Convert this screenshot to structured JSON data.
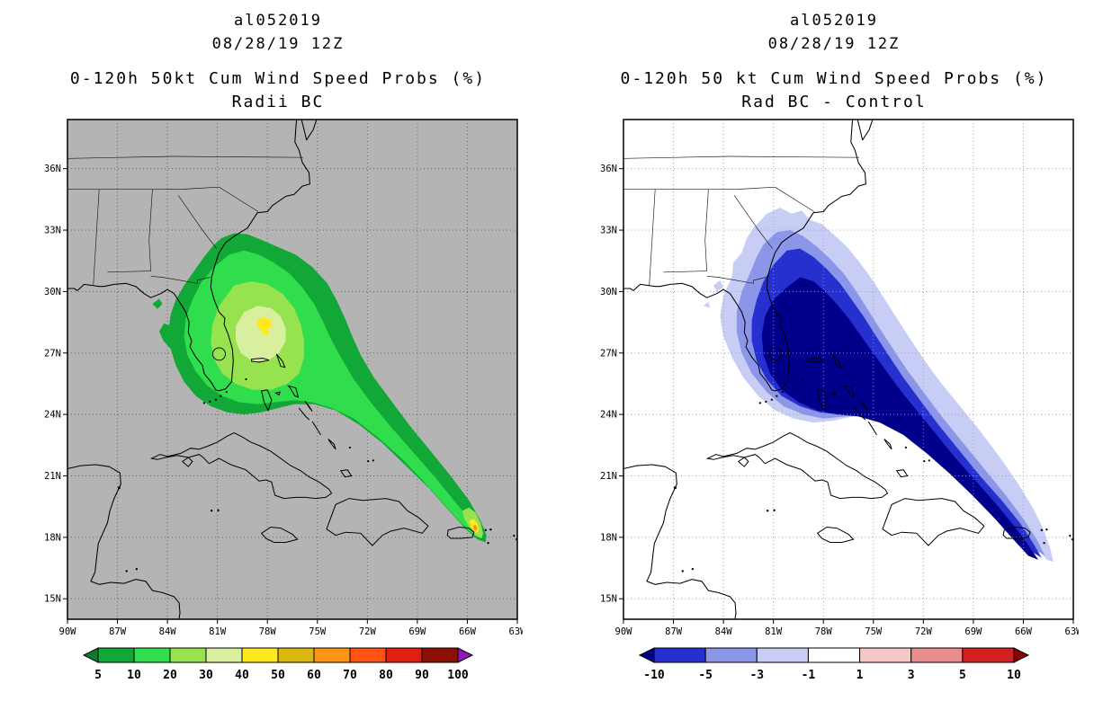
{
  "left": {
    "storm_id": "al052019",
    "init_time": "08/28/19 12Z",
    "product": "0-120h 50kt Cum Wind Speed Probs (%)",
    "variant": "Radii BC",
    "map_bg": "#b4b4b4",
    "lat_ticks": [
      "36N",
      "33N",
      "30N",
      "27N",
      "24N",
      "21N",
      "18N",
      "15N"
    ],
    "lon_ticks": [
      "90W",
      "87W",
      "84W",
      "81W",
      "78W",
      "75W",
      "72W",
      "69W",
      "66W",
      "63W"
    ],
    "colorbar": {
      "labels": [
        "5",
        "10",
        "20",
        "30",
        "40",
        "50",
        "60",
        "70",
        "80",
        "90",
        "100"
      ],
      "colors": [
        "#0a7d2c",
        "#12a837",
        "#2fdd4d",
        "#97e34f",
        "#d8efa0",
        "#ffe81e",
        "#dbb60f",
        "#ff9415",
        "#ff5213",
        "#e01f10",
        "#8c1004",
        "#8d18b8"
      ]
    }
  },
  "right": {
    "storm_id": "al052019",
    "init_time": "08/28/19 12Z",
    "product": "0-120h 50 kt Cum Wind Speed Probs (%)",
    "variant": "Rad BC - Control",
    "map_bg": "#ffffff",
    "lat_ticks": [
      "36N",
      "33N",
      "30N",
      "27N",
      "24N",
      "21N",
      "18N",
      "15N"
    ],
    "lon_ticks": [
      "90W",
      "87W",
      "84W",
      "81W",
      "78W",
      "75W",
      "72W",
      "69W",
      "66W",
      "63W"
    ],
    "colorbar": {
      "labels": [
        "-10",
        "-5",
        "-3",
        "-1",
        "1",
        "3",
        "5",
        "10"
      ],
      "colors": [
        "#00008b",
        "#2630cf",
        "#8c96e8",
        "#c8cdf5",
        "#ffffff",
        "#f5c8c8",
        "#e88c8c",
        "#d32020",
        "#8b0000"
      ]
    }
  },
  "chart_data": [
    {
      "type": "heatmap",
      "subtype": "filled-contour-map",
      "storm": "al052019",
      "init": "08/28/19 12Z",
      "title": "0-120h 50kt Cum Wind Speed Probs (%)",
      "variant": "Radii BC",
      "units": "%",
      "levels": [
        5,
        10,
        20,
        30,
        40,
        50,
        60,
        70,
        80,
        90,
        100
      ],
      "palette": [
        "#0a7d2c",
        "#12a837",
        "#2fdd4d",
        "#97e34f",
        "#d8efa0",
        "#ffe81e",
        "#dbb60f",
        "#ff9415",
        "#ff5213",
        "#e01f10",
        "#8c1004",
        "#8d18b8"
      ],
      "lon_range_deg_west": [
        90,
        63
      ],
      "lat_range_deg_north": [
        15,
        36
      ],
      "grid_interval_deg": 3,
      "legend_position": "bottom",
      "map_background": "gray land/sea with black coastlines",
      "features": [
        {
          "name": "main-swath",
          "description": "Comma-shaped probability region from offshore Georgia/Carolinas across Florida and the Bahamas tapering southeast to near Puerto Rico",
          "peak_band": "40-50",
          "peak_location_deg": {
            "lon_w": 78,
            "lat_n": 28
          }
        },
        {
          "name": "origin-maximum",
          "description": "Small high-probability bullseye at swath tail near Puerto Rico / Virgin Islands",
          "peak_band": "60-80",
          "peak_location_deg": {
            "lon_w": 65.5,
            "lat_n": 18.4
          }
        }
      ]
    },
    {
      "type": "heatmap",
      "subtype": "filled-contour-map",
      "storm": "al052019",
      "init": "08/28/19 12Z",
      "title": "0-120h 50 kt Cum Wind Speed Probs (%)",
      "variant": "Rad BC - Control",
      "units": "%",
      "levels": [
        -10,
        -5,
        -3,
        -1,
        1,
        3,
        5,
        10
      ],
      "palette": [
        "#00008b",
        "#2630cf",
        "#8c96e8",
        "#c8cdf5",
        "#ffffff",
        "#f5c8c8",
        "#e88c8c",
        "#d32020",
        "#8b0000"
      ],
      "lon_range_deg_west": [
        90,
        63
      ],
      "lat_range_deg_north": [
        15,
        36
      ],
      "grid_interval_deg": 3,
      "legend_position": "bottom",
      "map_background": "white with black coastlines",
      "features": [
        {
          "name": "negative-difference-swath",
          "description": "Entirely negative (blue) difference field along the same comma-shaped swath; dark navy core below -10 extends from about 81W 30N southeast to 64.5W 17N",
          "peak_band": "< -10"
        }
      ]
    }
  ]
}
